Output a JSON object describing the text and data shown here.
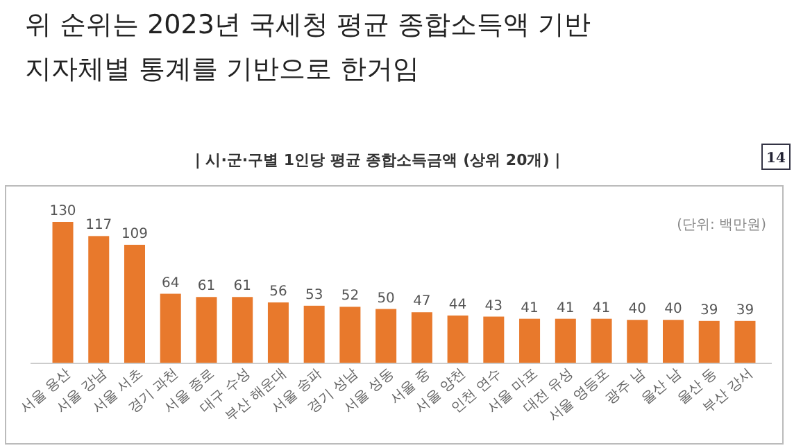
{
  "chart_data": {
    "type": "bar",
    "title": "위 순위는 2023년 국세청 평균 종합소득액 기반\n지자체별 통계를 기반으로 한거임",
    "subtitle": "| 시·군·구별 1인당 평균 종합소득금액 (상위 20개) |",
    "categories": [
      "서울 용산",
      "서울 강남",
      "서울 서초",
      "경기 과천",
      "서울 종로",
      "대구 수성",
      "부산 해운대",
      "서울 송파",
      "경기 성남",
      "서울 성동",
      "서울 중",
      "서울 양천",
      "인천 연수",
      "서울 마포",
      "대전 유성",
      "서울 영등포",
      "광주 남",
      "울산 남",
      "울산 동",
      "부산 강서"
    ],
    "values": [
      130,
      117,
      109,
      64,
      61,
      61,
      56,
      53,
      52,
      50,
      47,
      44,
      43,
      41,
      41,
      41,
      40,
      40,
      39,
      39
    ],
    "color": "#e8792c",
    "data_labels": true,
    "annotations": [
      "(단위: 백만원)",
      "14"
    ]
  }
}
